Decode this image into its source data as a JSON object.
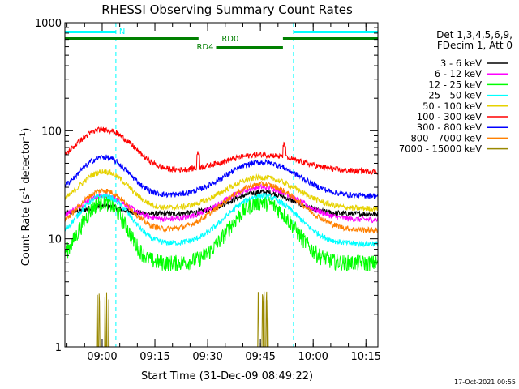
{
  "chart_data": {
    "type": "line",
    "title": "RHESSI Observing Summary Count Rates",
    "xlabel": "Start Time (31-Dec-09 08:49:22)",
    "ylabel_main": "Count Rate (s",
    "ylabel_sup1": "-1",
    "ylabel_mid": " detector",
    "ylabel_sup2": "-1",
    "ylabel_end": ")",
    "y_scale": "log",
    "ylim": [
      1,
      1000
    ],
    "x_unit": "minutes after 08:49:22",
    "xlim": [
      0,
      89
    ],
    "x_ticks": [
      {
        "label": "09:00",
        "x": 10.6
      },
      {
        "label": "09:15",
        "x": 25.6
      },
      {
        "label": "09:30",
        "x": 40.6
      },
      {
        "label": "09:45",
        "x": 55.6
      },
      {
        "label": "10:00",
        "x": 70.6
      },
      {
        "label": "10:15",
        "x": 85.6
      }
    ],
    "y_ticks": [
      {
        "label": "1",
        "v": 1
      },
      {
        "label": "10",
        "v": 10
      },
      {
        "label": "100",
        "v": 100
      },
      {
        "label": "1000",
        "v": 1000
      }
    ],
    "detector_info": [
      "Det 1,3,4,5,6,9,",
      "FDecim 1, Att 0"
    ],
    "legend_position": "right",
    "series": [
      {
        "name": "3 - 6 keV",
        "color": "#000000",
        "night": 17,
        "peak1": 20,
        "peak2": 27,
        "sigma1": 5,
        "sigma2": 8
      },
      {
        "name": "6 - 12 keV",
        "color": "#ff00ff",
        "night": 15,
        "peak1": 25,
        "peak2": 30,
        "sigma1": 6,
        "sigma2": 9
      },
      {
        "name": "12 - 25 keV",
        "color": "#00ff00",
        "night": 6,
        "peak1": 22,
        "peak2": 22,
        "sigma1": 5,
        "sigma2": 7
      },
      {
        "name": "25 - 50 keV",
        "color": "#00ffff",
        "night": 9,
        "peak1": 25,
        "peak2": 25,
        "sigma1": 6,
        "sigma2": 8
      },
      {
        "name": "50 - 100 keV",
        "color": "#e6d200",
        "night": 19,
        "peak1": 42,
        "peak2": 37,
        "sigma1": 6,
        "sigma2": 9
      },
      {
        "name": "100 - 300 keV",
        "color": "#ff0000",
        "night": 42,
        "peak1": 103,
        "peak2": 60,
        "sigma1": 7,
        "sigma2": 10
      },
      {
        "name": "300 - 800 keV",
        "color": "#0000ff",
        "night": 25,
        "peak1": 57,
        "peak2": 51,
        "sigma1": 6,
        "sigma2": 9
      },
      {
        "name": "800 - 7000 keV",
        "color": "#ff8000",
        "night": 12,
        "peak1": 28,
        "peak2": 32,
        "sigma1": 6,
        "sigma2": 9
      },
      {
        "name": "7000 - 15000 keV",
        "color": "#998800",
        "night": 1,
        "peak1": 1,
        "peak2": 1,
        "sigma1": 6,
        "sigma2": 9
      }
    ],
    "annotations": {
      "night_label": "N",
      "rd0_label": "RD0",
      "rd4_label": "RD4",
      "night_intervals": [
        [
          0,
          14.5
        ],
        [
          65,
          89
        ]
      ],
      "rd0_intervals": [
        [
          0,
          38
        ],
        [
          62,
          89
        ]
      ],
      "rd4_interval": [
        43,
        62
      ],
      "night_color": "#00ffff",
      "decim_color": "#008000",
      "saa_bursts_x": [
        9.2,
        9.8,
        11.4,
        11.9,
        12.5,
        55.0,
        56.2,
        56.6,
        57.3,
        57.7
      ]
    },
    "footer_date": "17-Oct-2021 00:55"
  }
}
